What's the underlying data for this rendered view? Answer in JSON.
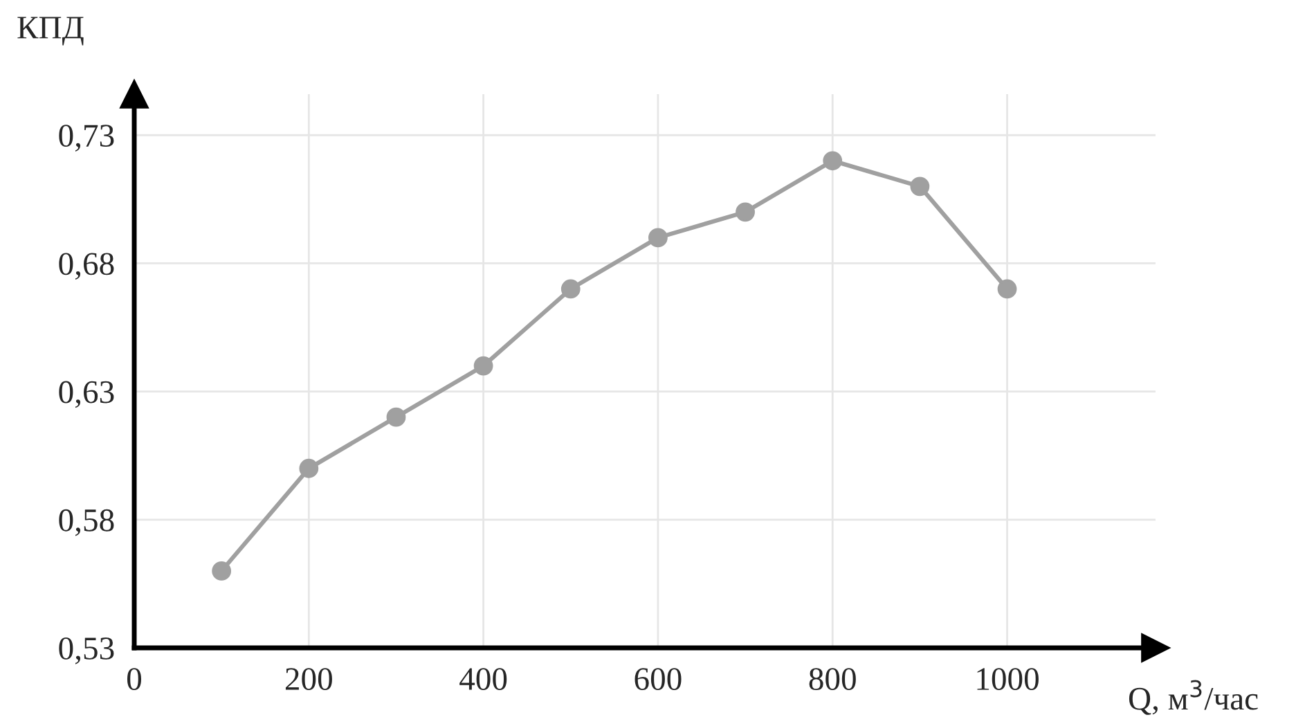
{
  "chart_data": {
    "type": "line",
    "xlabel": "Q, м$^{3}$/час",
    "ylabel": "КПД",
    "x": [
      100,
      200,
      300,
      400,
      500,
      600,
      700,
      800,
      900,
      1000
    ],
    "series": [
      {
        "color": "#a0a0a0",
        "values": [
          0.56,
          0.6,
          0.62,
          0.64,
          0.67,
          0.69,
          0.7,
          0.72,
          0.71,
          0.67
        ]
      }
    ],
    "xlim": [
      0,
      1170
    ],
    "xticks": [
      0,
      200,
      400,
      600,
      800,
      1000
    ],
    "ylim": [
      0.53,
      0.746
    ],
    "yticks": [
      {
        "value": 0.53,
        "label": "0,53"
      },
      {
        "value": 0.58,
        "label": "0,58"
      },
      {
        "value": 0.63,
        "label": "0,63"
      },
      {
        "value": 0.68,
        "label": "0,68"
      },
      {
        "value": 0.73,
        "label": "0,73"
      }
    ],
    "grid": true,
    "marker": "circle",
    "line_style": "solid"
  }
}
